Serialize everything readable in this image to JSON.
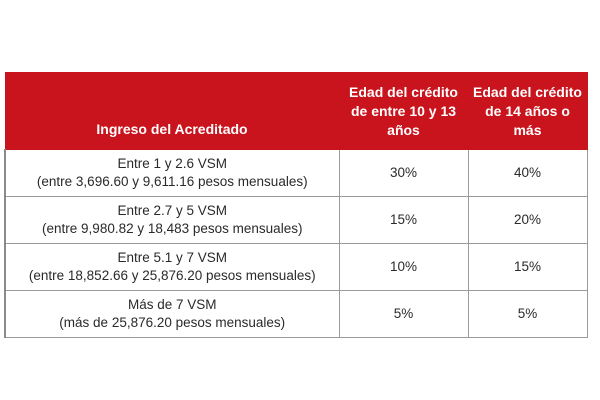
{
  "table": {
    "headers": [
      "Ingreso del Acreditado",
      "Edad del crédito de entre 10 y 13 años",
      "Edad del crédito de 14 años o más"
    ],
    "rows": [
      {
        "range": "Entre 1 y 2.6 VSM",
        "detail": "(entre 3,696.60 y 9,611.16 pesos mensuales)",
        "rate_10_13": "30%",
        "rate_14_plus": "40%"
      },
      {
        "range": "Entre 2.7 y 5 VSM",
        "detail": "(entre 9,980.82 y 18,483 pesos mensuales)",
        "rate_10_13": "15%",
        "rate_14_plus": "20%"
      },
      {
        "range": "Entre 5.1 y 7 VSM",
        "detail": "(entre 18,852.66 y 25,876.20 pesos mensuales)",
        "rate_10_13": "10%",
        "rate_14_plus": "15%"
      },
      {
        "range": "Más de 7 VSM",
        "detail": "(más de 25,876.20 pesos mensuales)",
        "rate_10_13": "5%",
        "rate_14_plus": "5%"
      }
    ],
    "colors": {
      "header_bg": "#c9141d",
      "header_text": "#ffffff",
      "border": "#9a9a9a",
      "body_text": "#2a2a2a"
    }
  }
}
